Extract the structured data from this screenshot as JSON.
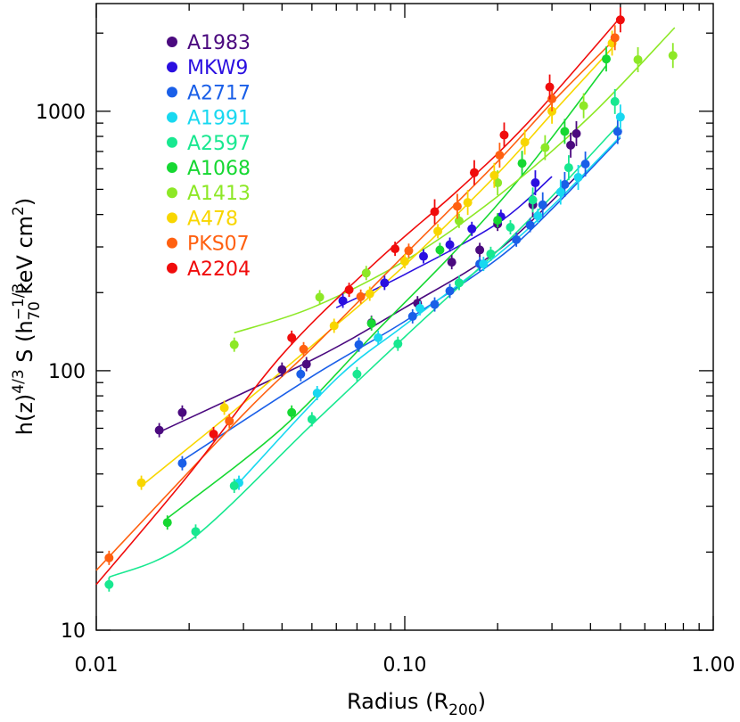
{
  "chart_data": {
    "type": "scatter",
    "xlabel_main": "Radius (R",
    "xlabel_sub": "200",
    "xlabel_close": ")",
    "ylabel_prefix": "h(z)",
    "ylabel_pow1": "4/3",
    "ylabel_mid": " S (h",
    "ylabel_pow2": "−1/3",
    "ylabel_sub2": "70",
    "ylabel_units": "  keV cm",
    "ylabel_pow3": "2",
    "ylabel_close": ")",
    "xscale": "log",
    "yscale": "log",
    "xlim": [
      0.01,
      1.0
    ],
    "ylim": [
      10,
      2600
    ],
    "x_ticks": [
      0.01,
      0.1,
      1.0
    ],
    "x_tick_labels": [
      "0.01",
      "0.10",
      "1.00"
    ],
    "y_ticks": [
      10,
      100,
      1000
    ],
    "y_tick_labels": [
      "10",
      "100",
      "1000"
    ],
    "legend_position": "top-left",
    "series": [
      {
        "name": "A1983",
        "color": "#4b0a7f",
        "x": [
          0.016,
          0.019,
          0.04,
          0.048,
          0.078,
          0.11,
          0.142,
          0.175,
          0.2,
          0.26,
          0.345,
          0.36
        ],
        "y": [
          59,
          69,
          101,
          106,
          153,
          182,
          262,
          292,
          368,
          436,
          740,
          820
        ],
        "fit_x": [
          0.016,
          0.05,
          0.1,
          0.2,
          0.36
        ],
        "fit_y": [
          58,
          110,
          175,
          290,
          560
        ]
      },
      {
        "name": "MKW9",
        "color": "#2a0fe0",
        "x": [
          0.063,
          0.086,
          0.115,
          0.14,
          0.165,
          0.205,
          0.265
        ],
        "y": [
          186,
          218,
          276,
          306,
          352,
          392,
          530
        ],
        "fit_x": [
          0.06,
          0.1,
          0.2,
          0.3
        ],
        "fit_y": [
          175,
          235,
          370,
          560
        ]
      },
      {
        "name": "A2717",
        "color": "#1a5fe8",
        "x": [
          0.019,
          0.046,
          0.071,
          0.106,
          0.125,
          0.14,
          0.175,
          0.23,
          0.255,
          0.28,
          0.33,
          0.385,
          0.49
        ],
        "y": [
          44,
          97,
          126,
          162,
          180,
          203,
          258,
          320,
          364,
          436,
          522,
          626,
          835
        ],
        "fit_x": [
          0.019,
          0.05,
          0.1,
          0.2,
          0.3,
          0.5
        ],
        "fit_y": [
          45,
          95,
          155,
          270,
          420,
          790
        ]
      },
      {
        "name": "A1991",
        "color": "#18d8f0",
        "x": [
          0.029,
          0.052,
          0.082,
          0.112,
          0.15,
          0.18,
          0.27,
          0.32,
          0.365,
          0.5
        ],
        "y": [
          37,
          82,
          134,
          174,
          218,
          258,
          395,
          488,
          556,
          950
        ],
        "fit_x": [
          0.029,
          0.06,
          0.1,
          0.2,
          0.3,
          0.5
        ],
        "fit_y": [
          37,
          93,
          150,
          280,
          430,
          800
        ]
      },
      {
        "name": "A2597",
        "color": "#18e890",
        "x": [
          0.011,
          0.021,
          0.028,
          0.05,
          0.07,
          0.095,
          0.15,
          0.19,
          0.22,
          0.26,
          0.34,
          0.48
        ],
        "y": [
          15,
          24,
          36,
          65,
          97,
          127,
          218,
          282,
          357,
          455,
          606,
          1090
        ],
        "fit_x": [
          0.011,
          0.02,
          0.05,
          0.1,
          0.2,
          0.3,
          0.49
        ],
        "fit_y": [
          16,
          22,
          62,
          135,
          290,
          470,
          880
        ]
      },
      {
        "name": "A1068",
        "color": "#16d832",
        "x": [
          0.017,
          0.043,
          0.078,
          0.13,
          0.2,
          0.24,
          0.33,
          0.45
        ],
        "y": [
          26,
          69,
          152,
          292,
          380,
          630,
          836,
          1590
        ],
        "fit_x": [
          0.017,
          0.04,
          0.08,
          0.15,
          0.25,
          0.45
        ],
        "fit_y": [
          27,
          60,
          140,
          300,
          600,
          1500
        ]
      },
      {
        "name": "A1413",
        "color": "#8de826",
        "x": [
          0.028,
          0.053,
          0.075,
          0.15,
          0.2,
          0.285,
          0.38,
          0.57,
          0.74
        ],
        "y": [
          126,
          192,
          238,
          378,
          530,
          724,
          1050,
          1580,
          1640
        ],
        "fit_x": [
          0.028,
          0.05,
          0.1,
          0.2,
          0.4,
          0.75
        ],
        "fit_y": [
          140,
          175,
          265,
          470,
          960,
          2100
        ]
      },
      {
        "name": "A478",
        "color": "#f8d600",
        "x": [
          0.014,
          0.026,
          0.059,
          0.077,
          0.1,
          0.128,
          0.16,
          0.195,
          0.245,
          0.3,
          0.47
        ],
        "y": [
          37,
          72,
          149,
          198,
          264,
          345,
          445,
          566,
          760,
          1000,
          1830
        ],
        "fit_x": [
          0.014,
          0.03,
          0.06,
          0.1,
          0.2,
          0.3,
          0.47
        ],
        "fit_y": [
          36,
          75,
          150,
          255,
          575,
          980,
          1750
        ]
      },
      {
        "name": "PKS07",
        "color": "#ff6010",
        "x": [
          0.011,
          0.027,
          0.047,
          0.072,
          0.103,
          0.148,
          0.203,
          0.3,
          0.48
        ],
        "y": [
          19,
          64,
          121,
          193,
          290,
          430,
          677,
          1116,
          1920
        ],
        "fit_x": [
          0.01,
          0.03,
          0.05,
          0.1,
          0.2,
          0.3,
          0.48
        ],
        "fit_y": [
          17,
          68,
          122,
          280,
          640,
          1080,
          1900
        ]
      },
      {
        "name": "A2204",
        "color": "#f00c0c",
        "x": [
          0.024,
          0.043,
          0.066,
          0.093,
          0.125,
          0.168,
          0.21,
          0.295,
          0.5
        ],
        "y": [
          57,
          134,
          205,
          295,
          410,
          580,
          810,
          1240,
          2250
        ],
        "fit_x": [
          0.01,
          0.02,
          0.04,
          0.08,
          0.15,
          0.25,
          0.5
        ],
        "fit_y": [
          15,
          40,
          115,
          260,
          500,
          900,
          2300
        ]
      }
    ]
  }
}
